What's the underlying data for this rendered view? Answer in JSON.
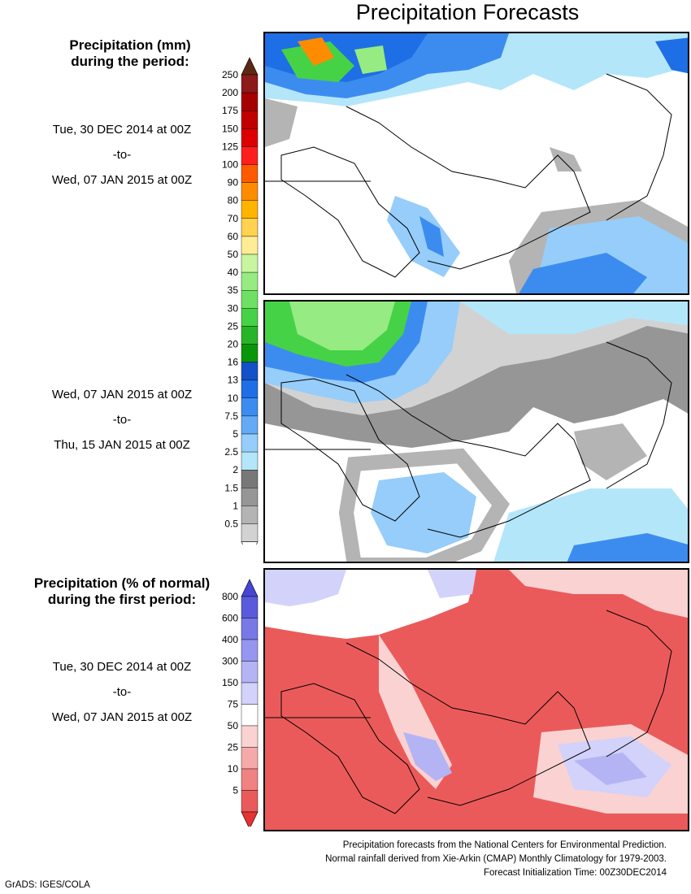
{
  "title": "Precipitation Forecasts",
  "panel1_header": [
    "Precipitation (mm)",
    "during the period:"
  ],
  "period1": [
    "Tue, 30 DEC 2014 at 00Z",
    "-to-",
    "Wed, 07 JAN 2015 at 00Z"
  ],
  "period2": [
    "Wed, 07 JAN 2015 at 00Z",
    "-to-",
    "Thu, 15 JAN 2015 at 00Z"
  ],
  "panel3_header": [
    "Precipitation (% of normal)",
    "during the first period:"
  ],
  "period3": [
    "Tue, 30 DEC 2014 at 00Z",
    "-to-",
    "Wed, 07 JAN 2015 at 00Z"
  ],
  "mm_scale": {
    "labels": [
      "250",
      "200",
      "175",
      "150",
      "125",
      "100",
      "90",
      "80",
      "70",
      "60",
      "50",
      "40",
      "35",
      "30",
      "25",
      "20",
      "16",
      "13",
      "10",
      "7.5",
      "5",
      "2.5",
      "2",
      "1.5",
      "1",
      "0.5"
    ],
    "colors": [
      "#8b1a1a",
      "#a50000",
      "#c00000",
      "#dc0000",
      "#ff1e1e",
      "#ff5a00",
      "#ff8c00",
      "#ffb400",
      "#ffd250",
      "#ffec96",
      "#c8f5a0",
      "#96eb82",
      "#6ee164",
      "#46d246",
      "#28b428",
      "#0a960a",
      "#1450c8",
      "#1e6ee6",
      "#3c8cf0",
      "#64aaf5",
      "#96cdfa",
      "#b4e6fa",
      "#787878",
      "#969696",
      "#b4b4b4",
      "#d2d2d2"
    ],
    "top_arrow": "#5a2814",
    "bottom_arrow": "#ffffff"
  },
  "pct_scale": {
    "labels": [
      "800",
      "600",
      "400",
      "300",
      "150",
      "75",
      "50",
      "25",
      "10",
      "5"
    ],
    "colors": [
      "#5a5adc",
      "#7878e6",
      "#9696f0",
      "#b4b4f5",
      "#d2d2fa",
      "#ffffff",
      "#fad2d2",
      "#f5aaaa",
      "#f08282",
      "#eb5a5a"
    ],
    "top_arrow": "#4646d2",
    "bottom_arrow": "#e63232"
  },
  "footer": [
    "Precipitation forecasts from the National Centers for Environmental Prediction.",
    "Normal rainfall derived from Xie-Arkin (CMAP) Monthly Climatology for 1979-2003.",
    "Forecast Initialization Time: 00Z30DEC2014"
  ],
  "credit": "GrADS: IGES/COLA"
}
